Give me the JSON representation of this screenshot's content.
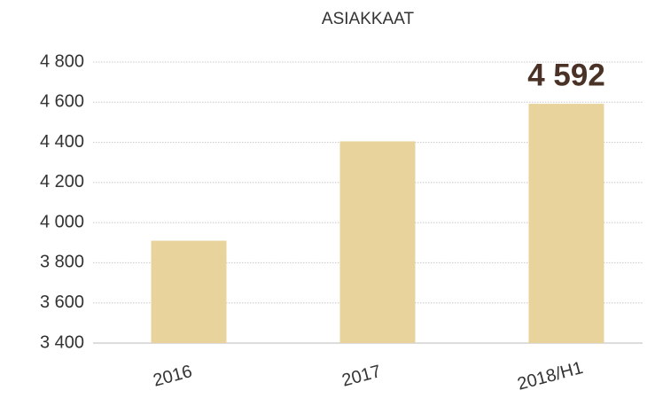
{
  "chart_data": {
    "type": "bar",
    "title": "ASIAKKAAT",
    "categories": [
      "2016",
      "2017",
      "2018/H1"
    ],
    "values": [
      3910,
      4405,
      4592
    ],
    "value_labels": [
      null,
      null,
      "4 592"
    ],
    "color": "#e8d39c",
    "ylim": [
      3400,
      4800
    ],
    "yticks": [
      {
        "value": 3400,
        "label": "3 400"
      },
      {
        "value": 3600,
        "label": "3 600"
      },
      {
        "value": 3800,
        "label": "3 800"
      },
      {
        "value": 4000,
        "label": "4 000"
      },
      {
        "value": 4200,
        "label": "4 200"
      },
      {
        "value": 4400,
        "label": "4 400"
      },
      {
        "value": 4600,
        "label": "4 600"
      },
      {
        "value": 4800,
        "label": "4 800"
      }
    ],
    "grid": true
  }
}
